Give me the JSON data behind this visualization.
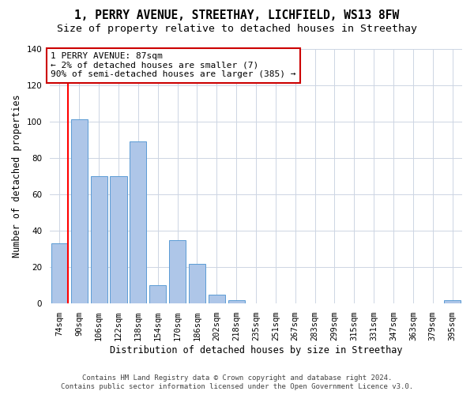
{
  "title": "1, PERRY AVENUE, STREETHAY, LICHFIELD, WS13 8FW",
  "subtitle": "Size of property relative to detached houses in Streethay",
  "xlabel": "Distribution of detached houses by size in Streethay",
  "ylabel": "Number of detached properties",
  "categories": [
    "74sqm",
    "90sqm",
    "106sqm",
    "122sqm",
    "138sqm",
    "154sqm",
    "170sqm",
    "186sqm",
    "202sqm",
    "218sqm",
    "235sqm",
    "251sqm",
    "267sqm",
    "283sqm",
    "299sqm",
    "315sqm",
    "331sqm",
    "347sqm",
    "363sqm",
    "379sqm",
    "395sqm"
  ],
  "values": [
    33,
    101,
    70,
    70,
    89,
    10,
    35,
    22,
    5,
    2,
    0,
    0,
    0,
    0,
    0,
    0,
    0,
    0,
    0,
    0,
    2
  ],
  "bar_color": "#aec6e8",
  "bar_edge_color": "#5b9bd5",
  "annotation_text": "1 PERRY AVENUE: 87sqm\n← 2% of detached houses are smaller (7)\n90% of semi-detached houses are larger (385) →",
  "annotation_box_facecolor": "#ffffff",
  "annotation_box_edgecolor": "#cc0000",
  "red_line_x": 0.425,
  "ylim": [
    0,
    140
  ],
  "yticks": [
    0,
    20,
    40,
    60,
    80,
    100,
    120,
    140
  ],
  "footer_line1": "Contains HM Land Registry data © Crown copyright and database right 2024.",
  "footer_line2": "Contains public sector information licensed under the Open Government Licence v3.0.",
  "bg_color": "#ffffff",
  "grid_color": "#cdd5e3",
  "title_fontsize": 10.5,
  "subtitle_fontsize": 9.5,
  "axis_label_fontsize": 8.5,
  "tick_fontsize": 7.5,
  "annotation_fontsize": 8,
  "footer_fontsize": 6.5
}
